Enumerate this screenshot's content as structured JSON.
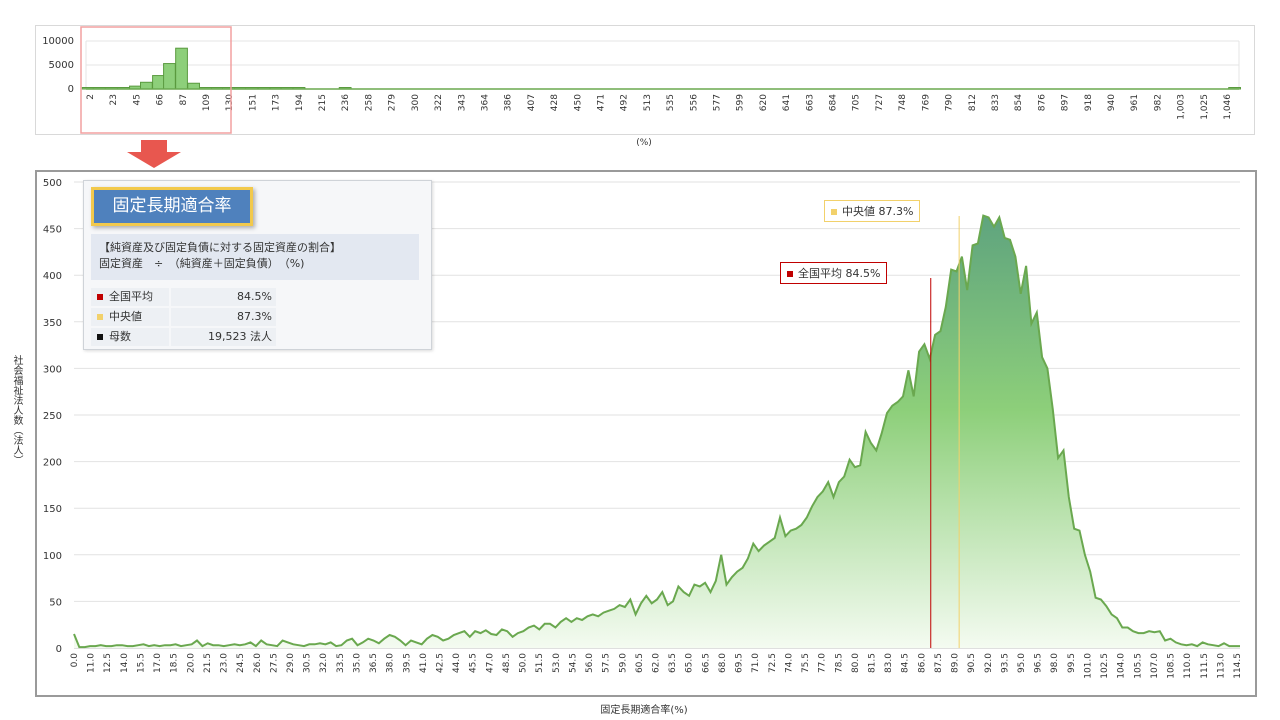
{
  "colors": {
    "area_line": "#6aa84f",
    "area_top": "#8dcf7a",
    "area_dark": "#5fa47e",
    "mean": "#c00000",
    "median": "#f2d16b",
    "count": "#111111",
    "selection": "#f2a0a0",
    "arrow": "#e8574f",
    "title_bg": "#4f81bd",
    "title_border": "#f2c94c"
  },
  "overview": {
    "x_tick_labels": [
      "2",
      "23",
      "45",
      "66",
      "87",
      "109",
      "130",
      "151",
      "173",
      "194",
      "215",
      "236",
      "258",
      "279",
      "300",
      "322",
      "343",
      "364",
      "386",
      "407",
      "428",
      "450",
      "471",
      "492",
      "513",
      "535",
      "556",
      "577",
      "599",
      "620",
      "641",
      "663",
      "684",
      "705",
      "727",
      "748",
      "769",
      "790",
      "812",
      "833",
      "854",
      "876",
      "897",
      "918",
      "940",
      "961",
      "982",
      "1,003",
      "1,025",
      "1,046"
    ],
    "y_tick_labels": [
      "10000",
      "5000",
      "0"
    ],
    "xlabel": "(%)"
  },
  "info_panel": {
    "title": "固定長期適合率",
    "formula_line1": "【純資産及び固定負債に対する固定資産の割合】",
    "formula_line2": "固定資産　÷　（純資産＋固定負債）　（%)",
    "rows": [
      {
        "label": "全国平均",
        "value": "84.5%",
        "swatch": "mean-icon"
      },
      {
        "label": "中央値",
        "value": "87.3%",
        "swatch": "median-icon"
      },
      {
        "label": "母数",
        "value": "19,523  法人",
        "swatch": "count-icon"
      }
    ]
  },
  "callouts": {
    "mean": "全国平均  84.5%",
    "median": "中央値  87.3%"
  },
  "chart_data": [
    {
      "type": "bar",
      "title": "",
      "xlabel": "(%)",
      "ylabel": "",
      "ylim": [
        0,
        10000
      ],
      "x": [
        2,
        12,
        23,
        34,
        45,
        55,
        66,
        76,
        87,
        98,
        109,
        120,
        130,
        141,
        151,
        162,
        173,
        183,
        194,
        236,
        1046
      ],
      "values": [
        120,
        150,
        180,
        250,
        600,
        1400,
        2800,
        5300,
        8500,
        1200,
        300,
        180,
        150,
        120,
        100,
        90,
        80,
        70,
        60,
        300,
        300
      ]
    },
    {
      "type": "area",
      "title": "",
      "xlabel": "固定長期適合率(%)",
      "ylabel": "社会福祉法人数（法人）",
      "ylim": [
        0,
        500
      ],
      "xlim": [
        0,
        115
      ],
      "x_step": 0.5,
      "x_tick_labels": [
        "0.0",
        "11.0",
        "12.5",
        "14.0",
        "15.5",
        "17.0",
        "18.5",
        "20.0",
        "21.5",
        "23.0",
        "24.5",
        "26.0",
        "27.5",
        "29.0",
        "30.5",
        "32.0",
        "33.5",
        "35.0",
        "36.5",
        "38.0",
        "39.5",
        "41.0",
        "42.5",
        "44.0",
        "45.5",
        "47.0",
        "48.5",
        "50.0",
        "51.5",
        "53.0",
        "54.5",
        "56.0",
        "57.5",
        "59.0",
        "60.5",
        "62.0",
        "63.5",
        "65.0",
        "66.5",
        "68.0",
        "69.5",
        "71.0",
        "72.5",
        "74.0",
        "75.5",
        "77.0",
        "78.5",
        "80.0",
        "81.5",
        "83.0",
        "84.5",
        "86.0",
        "87.5",
        "89.0",
        "90.5",
        "92.0",
        "93.5",
        "95.0",
        "96.5",
        "98.0",
        "99.5",
        "101.0",
        "102.5",
        "104.0",
        "105.5",
        "107.0",
        "108.5",
        "110.0",
        "111.5",
        "113.0",
        "114.5"
      ],
      "y_tick_labels": [
        "0",
        "50",
        "100",
        "150",
        "200",
        "250",
        "300",
        "350",
        "400",
        "450",
        "500"
      ],
      "values": [
        15,
        1,
        1,
        2,
        2,
        3,
        2,
        2,
        3,
        3,
        2,
        2,
        3,
        4,
        2,
        3,
        2,
        3,
        3,
        4,
        2,
        3,
        4,
        8,
        2,
        5,
        3,
        3,
        2,
        3,
        4,
        3,
        4,
        6,
        2,
        8,
        4,
        3,
        2,
        8,
        6,
        4,
        3,
        2,
        4,
        4,
        5,
        4,
        6,
        2,
        3,
        8,
        10,
        3,
        6,
        10,
        8,
        5,
        10,
        14,
        12,
        8,
        3,
        8,
        6,
        4,
        10,
        14,
        12,
        8,
        10,
        14,
        16,
        18,
        12,
        18,
        16,
        19,
        15,
        14,
        20,
        18,
        12,
        16,
        18,
        22,
        24,
        20,
        26,
        26,
        22,
        28,
        32,
        28,
        32,
        30,
        34,
        36,
        34,
        38,
        40,
        42,
        46,
        44,
        52,
        36,
        48,
        56,
        48,
        52,
        60,
        46,
        50,
        66,
        60,
        56,
        68,
        66,
        70,
        60,
        72,
        100,
        68,
        76,
        82,
        86,
        96,
        112,
        104,
        110,
        114,
        118,
        140,
        120,
        126,
        128,
        132,
        140,
        152,
        162,
        168,
        178,
        162,
        178,
        184,
        202,
        194,
        196,
        232,
        220,
        212,
        230,
        252,
        260,
        264,
        270,
        298,
        270,
        318,
        326,
        310,
        336,
        340,
        366,
        406,
        404,
        420,
        384,
        432,
        434,
        464,
        462,
        452,
        462,
        440,
        438,
        420,
        380,
        410,
        348,
        360,
        312,
        300,
        256,
        204,
        212,
        162,
        128,
        126,
        100,
        82,
        54,
        52,
        45,
        36,
        32,
        22,
        22,
        18,
        16,
        16,
        18,
        17,
        18,
        8,
        10,
        6,
        4,
        3,
        4,
        2,
        6,
        4,
        3,
        2,
        5,
        2,
        2,
        2
      ],
      "reference_lines": [
        {
          "name": "全国平均",
          "value": 84.5
        },
        {
          "name": "中央値",
          "value": 87.3
        }
      ]
    }
  ]
}
